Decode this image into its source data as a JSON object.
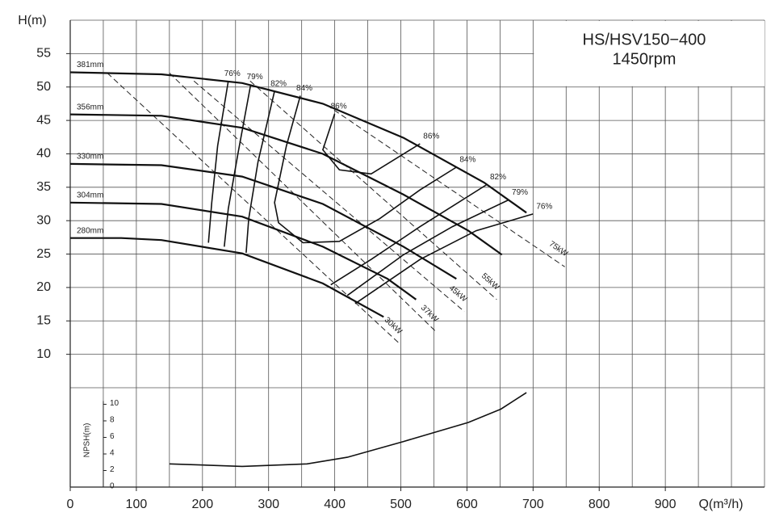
{
  "chart_data": {
    "type": "line",
    "title": "HS/HSV150−400",
    "subtitle": "1450rpm",
    "x_label": "Q(m³/h)",
    "y_label": "H(m)",
    "y2_label": "NPSH(m)",
    "grid": true,
    "xlim": [
      0,
      1050
    ],
    "xticks": [
      0,
      100,
      200,
      300,
      400,
      500,
      600,
      700,
      800,
      900
    ],
    "xgrid": [
      0,
      50,
      100,
      150,
      200,
      250,
      300,
      350,
      400,
      450,
      500,
      550,
      600,
      650,
      700,
      750,
      800,
      850,
      900,
      950,
      1000,
      1050
    ],
    "ylim": [
      5,
      60
    ],
    "yticks": [
      10,
      15,
      20,
      25,
      30,
      35,
      40,
      45,
      50,
      55
    ],
    "ygrid": [
      5,
      10,
      15,
      20,
      25,
      30,
      35,
      40,
      45,
      50,
      55,
      60
    ],
    "y2lim": [
      0,
      12
    ],
    "y2ticks": [
      0,
      2,
      4,
      6,
      8,
      10
    ],
    "head_curves": [
      {
        "name": "381mm",
        "x": [
          0,
          138,
          260,
          382,
          504,
          626,
          690
        ],
        "values": [
          52.2,
          51.9,
          50.6,
          47.5,
          42.4,
          35.7,
          31.2
        ]
      },
      {
        "name": "356mm",
        "x": [
          0,
          138,
          260,
          382,
          504,
          602,
          653
        ],
        "values": [
          45.9,
          45.7,
          43.9,
          40.0,
          33.9,
          28.5,
          24.9
        ]
      },
      {
        "name": "330mm",
        "x": [
          0,
          138,
          260,
          382,
          504,
          584
        ],
        "values": [
          38.5,
          38.3,
          36.6,
          32.5,
          26.1,
          21.3
        ]
      },
      {
        "name": "304mm",
        "x": [
          0,
          138,
          260,
          382,
          480,
          523
        ],
        "values": [
          32.7,
          32.5,
          30.6,
          26.1,
          21.3,
          18.2
        ]
      },
      {
        "name": "280mm",
        "x": [
          0,
          77,
          138,
          260,
          382,
          474
        ],
        "values": [
          27.4,
          27.4,
          27.1,
          25.1,
          20.6,
          15.6
        ]
      }
    ],
    "efficiency_curves": [
      {
        "name": "76%",
        "x": [
          239,
          223,
          214,
          209,
          null,
          431,
          529,
          614,
          700
        ],
        "values": [
          50.9,
          41.2,
          32.7,
          26.7,
          null,
          17.6,
          24.2,
          28.5,
          31.0
        ]
      },
      {
        "name": "79%",
        "x": [
          273,
          254,
          239,
          233,
          null,
          419,
          504,
          578,
          663
        ],
        "values": [
          50.4,
          40.2,
          31.8,
          26.1,
          null,
          18.8,
          24.9,
          29.1,
          33.1
        ]
      },
      {
        "name": "82%",
        "x": [
          309,
          284,
          270,
          266,
          null,
          394,
          455,
          529,
          630
        ],
        "values": [
          49.4,
          38.8,
          30.3,
          25.2,
          null,
          20.4,
          24.2,
          29.1,
          35.4
        ]
      },
      {
        "name": "84%",
        "x": [
          348,
          327,
          309,
          315,
          352,
          407,
          468,
          529,
          584
        ],
        "values": [
          48.7,
          41.2,
          32.7,
          29.7,
          26.7,
          26.9,
          30.3,
          34.6,
          38.0
        ]
      },
      {
        "name": "86%",
        "x": [
          400,
          382,
          407,
          455,
          529
        ],
        "values": [
          46.0,
          40.6,
          37.6,
          37.0,
          41.5
        ]
      }
    ],
    "power_lines": [
      {
        "name": "30kW",
        "x": [
          56,
          498
        ],
        "values": [
          52.1,
          11.6
        ]
      },
      {
        "name": "37kW",
        "x": [
          150,
          553
        ],
        "values": [
          52.1,
          13.4
        ]
      },
      {
        "name": "45kW",
        "x": [
          187,
          596
        ],
        "values": [
          50.9,
          16.4
        ]
      },
      {
        "name": "55kW",
        "x": [
          272,
          645
        ],
        "values": [
          50.9,
          18.2
        ]
      },
      {
        "name": "75kW",
        "x": [
          388,
          748
        ],
        "values": [
          47.3,
          23.1
        ]
      }
    ],
    "npsh": {
      "axis": "y2",
      "x": [
        150,
        260,
        358,
        419,
        504,
        602,
        651,
        690
      ],
      "values": [
        2.8,
        2.5,
        2.8,
        3.6,
        5.5,
        7.8,
        9.4,
        11.4
      ]
    }
  }
}
